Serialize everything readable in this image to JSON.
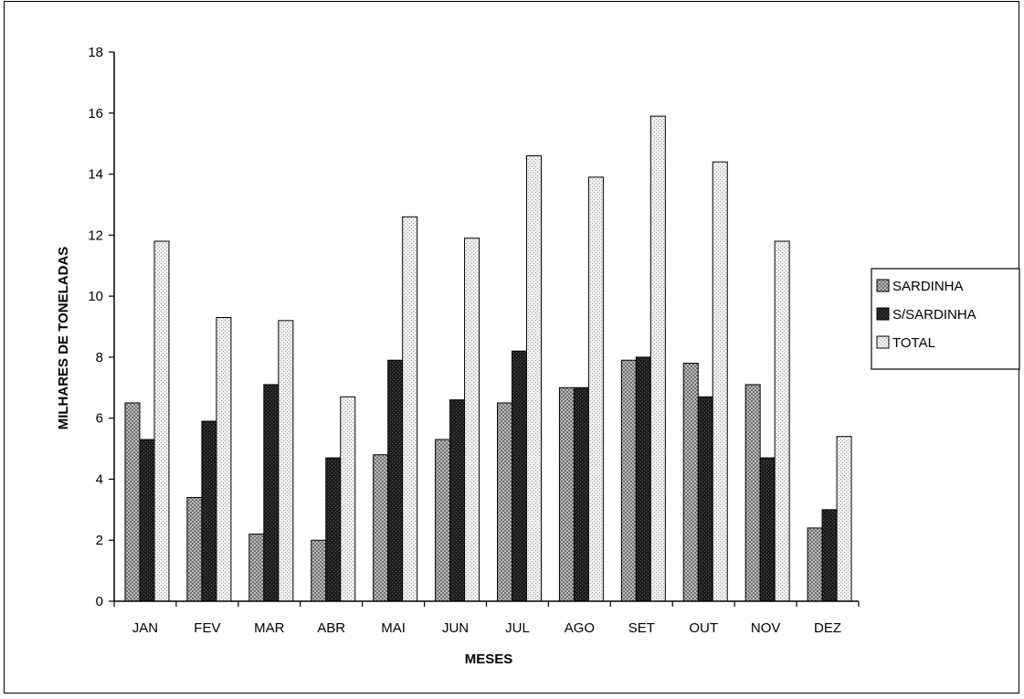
{
  "chart_data": {
    "type": "bar",
    "categories": [
      "JAN",
      "FEV",
      "MAR",
      "ABR",
      "MAI",
      "JUN",
      "JUL",
      "AGO",
      "SET",
      "OUT",
      "NOV",
      "DEZ"
    ],
    "series": [
      {
        "name": "SARDINHA",
        "values": [
          6.5,
          3.4,
          2.2,
          2.0,
          4.8,
          5.3,
          6.5,
          7.0,
          7.9,
          7.8,
          7.1,
          2.4
        ],
        "color": "#9a9a9a"
      },
      {
        "name": "S/SARDINHA",
        "values": [
          5.3,
          5.9,
          7.1,
          4.7,
          7.9,
          6.6,
          8.2,
          7.0,
          8.0,
          6.7,
          4.7,
          3.0
        ],
        "color": "#2a2a2a"
      },
      {
        "name": "TOTAL",
        "values": [
          11.8,
          9.3,
          9.2,
          6.7,
          12.6,
          11.9,
          14.6,
          13.9,
          15.9,
          14.4,
          11.8,
          5.4
        ],
        "color": "#d9d9d9"
      }
    ],
    "title": "",
    "xlabel": "MESES",
    "ylabel": "MILHARES DE TONELADAS",
    "ylim": [
      0,
      18
    ],
    "yticks": [
      0,
      2,
      4,
      6,
      8,
      10,
      12,
      14,
      16,
      18
    ],
    "grid": false,
    "legend_position": "right"
  }
}
